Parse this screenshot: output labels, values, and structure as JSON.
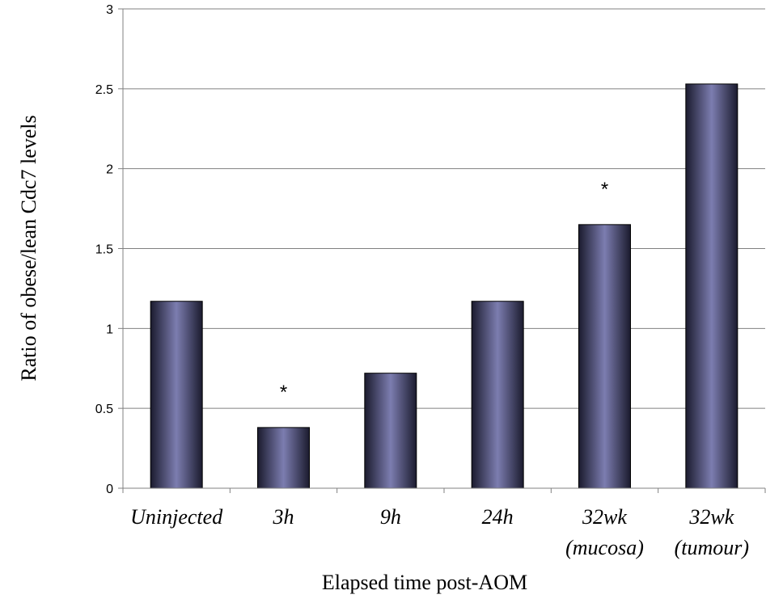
{
  "chart_data": {
    "type": "bar",
    "categories": [
      [
        "Uninjected"
      ],
      [
        "3h"
      ],
      [
        "9h"
      ],
      [
        "24h"
      ],
      [
        "32wk",
        "(mucosa)"
      ],
      [
        "32wk",
        "(tumour)"
      ]
    ],
    "values": [
      1.17,
      0.38,
      0.72,
      1.17,
      1.65,
      2.53
    ],
    "annotations": [
      "",
      "*",
      "",
      "",
      "*",
      ""
    ],
    "xlabel": "Elapsed time post-AOM",
    "ylabel": "Ratio of obese/lean Cdc7 levels",
    "ylim": [
      0,
      3
    ],
    "yticks": [
      0,
      0.5,
      1,
      1.5,
      2,
      2.5,
      3
    ],
    "ytick_labels": [
      "0",
      "0.5",
      "1",
      "1.5",
      "2",
      "2.5",
      "3"
    ],
    "grid": true,
    "legend": "none",
    "colors": {
      "bar_center": "#7c7db0",
      "bar_edge": "#1b1b2e",
      "grid": "#808080",
      "axis": "#808080"
    }
  }
}
